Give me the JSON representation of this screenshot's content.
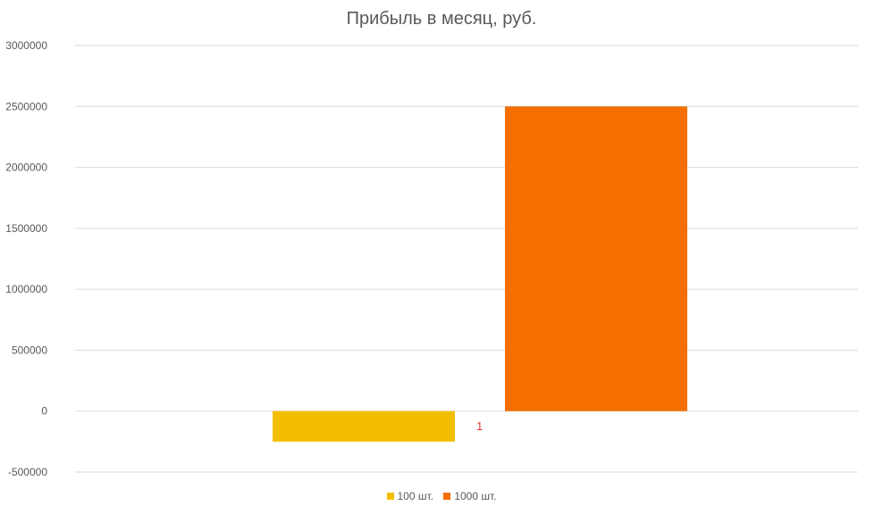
{
  "chart_data": {
    "type": "bar",
    "title": "Прибыль в месяц, руб.",
    "categories": [
      "1"
    ],
    "series": [
      {
        "name": "100 шт.",
        "values": [
          -250000
        ],
        "color": "#F3BE00"
      },
      {
        "name": "1000 шт.",
        "values": [
          2500000
        ],
        "color": "#F46F00"
      }
    ],
    "ylim": [
      -500000,
      3000000
    ],
    "yticks": [
      "3000000",
      "2500000",
      "2000000",
      "1500000",
      "1000000",
      "500000",
      "0",
      "-500000"
    ],
    "grid": true,
    "legend_position": "bottom",
    "category_label_color": "#E03C31"
  }
}
